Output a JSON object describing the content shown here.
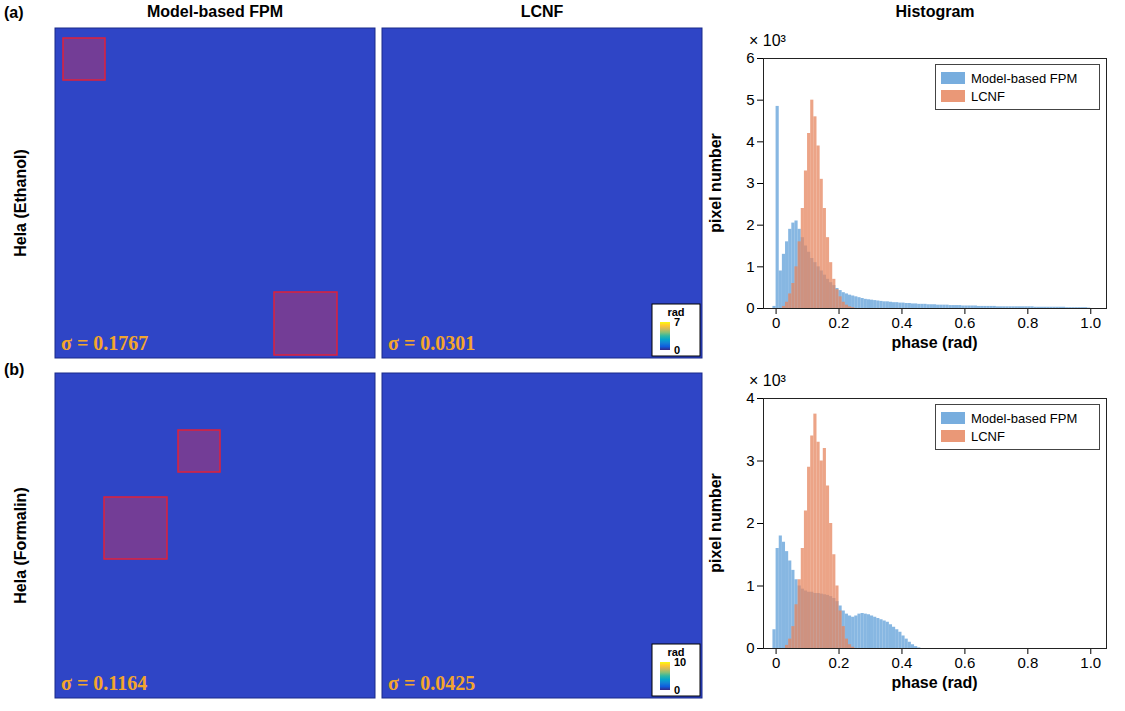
{
  "column_titles": [
    "Model-based FPM",
    "LCNF",
    "Histogram"
  ],
  "rows": [
    {
      "letter": "(a)",
      "label": "Hela (Ethanol)",
      "images": [
        {
          "sigma": "σ = 0.1767"
        },
        {
          "sigma": "σ = 0.0301"
        }
      ],
      "colorbar": {
        "label": "rad",
        "range": [
          0,
          7
        ],
        "ticks": [
          0,
          7
        ]
      }
    },
    {
      "letter": "(b)",
      "label": "Hela (Formalin)",
      "images": [
        {
          "sigma": "σ = 0.1164"
        },
        {
          "sigma": "σ = 0.0425"
        }
      ],
      "colorbar": {
        "label": "rad",
        "range": [
          0,
          10
        ],
        "ticks": [
          0,
          10
        ]
      }
    }
  ],
  "chart_data": [
    {
      "type": "histogram",
      "xlabel": "phase (rad)",
      "ylabel": "pixel number",
      "annotations": [
        "× 10³"
      ],
      "bins": [
        -0.01,
        0,
        0.01,
        0.02,
        0.03,
        0.04,
        0.05,
        0.06,
        0.07,
        0.08,
        0.09,
        0.1,
        0.11,
        0.12,
        0.13,
        0.14,
        0.15,
        0.16,
        0.17,
        0.18,
        0.19,
        0.2,
        0.21,
        0.22,
        0.23,
        0.24,
        0.25,
        0.26,
        0.27,
        0.28,
        0.29,
        0.3,
        0.31,
        0.32,
        0.33,
        0.34,
        0.35,
        0.36,
        0.37,
        0.38,
        0.39,
        0.4,
        0.41,
        0.42,
        0.43,
        0.44,
        0.45,
        0.46,
        0.47,
        0.48,
        0.49,
        0.5,
        0.51,
        0.52,
        0.53,
        0.54,
        0.55,
        0.56,
        0.57,
        0.58,
        0.59,
        0.6,
        0.61,
        0.62,
        0.63,
        0.64,
        0.65,
        0.66,
        0.67,
        0.68,
        0.69,
        0.7,
        0.71,
        0.72,
        0.73,
        0.74,
        0.75,
        0.76,
        0.77,
        0.78,
        0.79,
        0.8,
        0.81,
        0.82,
        0.83,
        0.84,
        0.85,
        0.86,
        0.87,
        0.88,
        0.89,
        0.9,
        0.91,
        0.92,
        0.93,
        0.94,
        0.95,
        0.96,
        0.97,
        0.98,
        0.99,
        1
      ],
      "series": [
        {
          "name": "Model-based FPM",
          "color": "#5f9fd8",
          "values": [
            0.05,
            4.85,
            0.9,
            1.3,
            1.6,
            1.9,
            2.05,
            2.1,
            1.9,
            1.7,
            1.5,
            1.35,
            1.2,
            1.1,
            1.0,
            0.9,
            0.8,
            0.7,
            0.62,
            0.55,
            0.48,
            0.43,
            0.38,
            0.35,
            0.32,
            0.3,
            0.28,
            0.26,
            0.24,
            0.22,
            0.21,
            0.2,
            0.19,
            0.18,
            0.17,
            0.16,
            0.16,
            0.15,
            0.14,
            0.14,
            0.13,
            0.13,
            0.12,
            0.12,
            0.11,
            0.11,
            0.1,
            0.1,
            0.1,
            0.09,
            0.09,
            0.09,
            0.08,
            0.08,
            0.08,
            0.08,
            0.07,
            0.07,
            0.07,
            0.07,
            0.06,
            0.06,
            0.06,
            0.06,
            0.06,
            0.05,
            0.05,
            0.05,
            0.05,
            0.05,
            0.05,
            0.04,
            0.04,
            0.04,
            0.04,
            0.04,
            0.04,
            0.04,
            0.04,
            0.04,
            0.04,
            0.04,
            0.04,
            0.03,
            0.03,
            0.03,
            0.03,
            0.03,
            0.03,
            0.03,
            0.03,
            0.03,
            0.03,
            0.02,
            0.02,
            0.02,
            0.02,
            0.02,
            0.02,
            0.02,
            0.01
          ]
        },
        {
          "name": "LCNF",
          "color": "#e6865f",
          "values": [
            0,
            0,
            0,
            0.05,
            0.15,
            0.35,
            0.6,
            1.0,
            1.6,
            2.4,
            3.3,
            4.2,
            5.0,
            4.6,
            3.9,
            3.1,
            2.4,
            1.7,
            1.1,
            0.7,
            0.45,
            0.28,
            0.15,
            0.08,
            0.04,
            0.02,
            0,
            0,
            0,
            0,
            0,
            0,
            0,
            0,
            0,
            0,
            0,
            0,
            0,
            0,
            0,
            0,
            0,
            0,
            0,
            0,
            0,
            0,
            0,
            0,
            0,
            0,
            0,
            0,
            0,
            0,
            0,
            0,
            0,
            0,
            0,
            0,
            0,
            0,
            0,
            0,
            0,
            0,
            0,
            0,
            0,
            0,
            0,
            0,
            0,
            0,
            0,
            0,
            0,
            0,
            0,
            0,
            0,
            0,
            0,
            0,
            0,
            0,
            0,
            0,
            0,
            0,
            0,
            0,
            0,
            0,
            0,
            0,
            0,
            0,
            0
          ]
        }
      ],
      "xlim": [
        -0.04,
        1.05
      ],
      "xticks": [
        0,
        0.2,
        0.4,
        0.6,
        0.8,
        {
          "value": 1,
          "label": "1.0"
        }
      ],
      "ylim": [
        0,
        6
      ],
      "yticks": [
        0,
        1,
        2,
        3,
        4,
        5,
        6
      ],
      "legend": "top-right"
    },
    {
      "type": "histogram",
      "xlabel": "phase (rad)",
      "ylabel": "pixel number",
      "annotations": [
        "× 10³"
      ],
      "bins": [
        -0.01,
        0,
        0.01,
        0.02,
        0.03,
        0.04,
        0.05,
        0.06,
        0.07,
        0.08,
        0.09,
        0.1,
        0.11,
        0.12,
        0.13,
        0.14,
        0.15,
        0.16,
        0.17,
        0.18,
        0.19,
        0.2,
        0.21,
        0.22,
        0.23,
        0.24,
        0.25,
        0.26,
        0.27,
        0.28,
        0.29,
        0.3,
        0.31,
        0.32,
        0.33,
        0.34,
        0.35,
        0.36,
        0.37,
        0.38,
        0.39,
        0.4,
        0.41,
        0.42,
        0.43,
        0.44,
        0.45,
        0.46,
        0.47,
        0.48,
        0.49,
        0.5,
        0.51,
        0.52,
        0.53,
        0.54,
        0.55,
        0.56,
        0.57,
        0.58,
        0.59,
        0.6,
        0.61,
        0.62,
        0.63,
        0.64,
        0.65,
        0.66,
        0.67,
        0.68,
        0.69,
        0.7,
        0.71,
        0.72,
        0.73,
        0.74,
        0.75,
        0.76,
        0.77,
        0.78,
        0.79,
        0.8,
        0.81,
        0.82,
        0.83,
        0.84,
        0.85,
        0.86,
        0.87,
        0.88,
        0.89,
        0.9,
        0.91,
        0.92,
        0.93,
        0.94,
        0.95,
        0.96,
        0.97,
        0.98,
        0.99,
        1
      ],
      "series": [
        {
          "name": "Model-based FPM",
          "color": "#5f9fd8",
          "values": [
            0.3,
            1.6,
            1.8,
            1.7,
            1.55,
            1.4,
            1.25,
            1.1,
            1.0,
            0.95,
            0.92,
            0.9,
            0.9,
            0.88,
            0.88,
            0.87,
            0.86,
            0.85,
            0.83,
            0.8,
            0.75,
            0.68,
            0.6,
            0.55,
            0.52,
            0.5,
            0.52,
            0.55,
            0.56,
            0.55,
            0.54,
            0.52,
            0.5,
            0.48,
            0.46,
            0.44,
            0.42,
            0.38,
            0.34,
            0.3,
            0.26,
            0.2,
            0.15,
            0.1,
            0.06,
            0.03,
            0.01,
            0,
            0,
            0,
            0,
            0,
            0,
            0,
            0,
            0,
            0,
            0,
            0,
            0,
            0,
            0,
            0,
            0,
            0,
            0,
            0,
            0,
            0,
            0,
            0,
            0,
            0,
            0,
            0,
            0,
            0,
            0,
            0,
            0,
            0,
            0,
            0,
            0,
            0,
            0,
            0,
            0,
            0,
            0,
            0,
            0,
            0,
            0,
            0,
            0,
            0,
            0,
            0,
            0,
            0
          ]
        },
        {
          "name": "LCNF",
          "color": "#e6865f",
          "values": [
            0,
            0,
            0,
            0,
            0.05,
            0.15,
            0.35,
            0.7,
            1.1,
            1.6,
            2.2,
            2.9,
            3.4,
            3.75,
            3.3,
            3.0,
            3.2,
            2.6,
            2.0,
            1.5,
            1.0,
            0.6,
            0.35,
            0.15,
            0.06,
            0.02,
            0,
            0,
            0,
            0,
            0,
            0,
            0,
            0,
            0,
            0,
            0,
            0,
            0,
            0,
            0,
            0,
            0,
            0,
            0,
            0,
            0,
            0,
            0,
            0,
            0,
            0,
            0,
            0,
            0,
            0,
            0,
            0,
            0,
            0,
            0,
            0,
            0,
            0,
            0,
            0,
            0,
            0,
            0,
            0,
            0,
            0,
            0,
            0,
            0,
            0,
            0,
            0,
            0,
            0,
            0,
            0,
            0,
            0,
            0,
            0,
            0,
            0,
            0,
            0,
            0,
            0,
            0,
            0,
            0,
            0,
            0,
            0,
            0,
            0,
            0
          ]
        }
      ],
      "xlim": [
        -0.04,
        1.05
      ],
      "xticks": [
        0,
        0.2,
        0.4,
        0.6,
        0.8,
        {
          "value": 1,
          "label": "1.0"
        }
      ],
      "ylim": [
        0,
        4
      ],
      "yticks": [
        0,
        1,
        2,
        3,
        4
      ],
      "legend": "top-right"
    }
  ]
}
